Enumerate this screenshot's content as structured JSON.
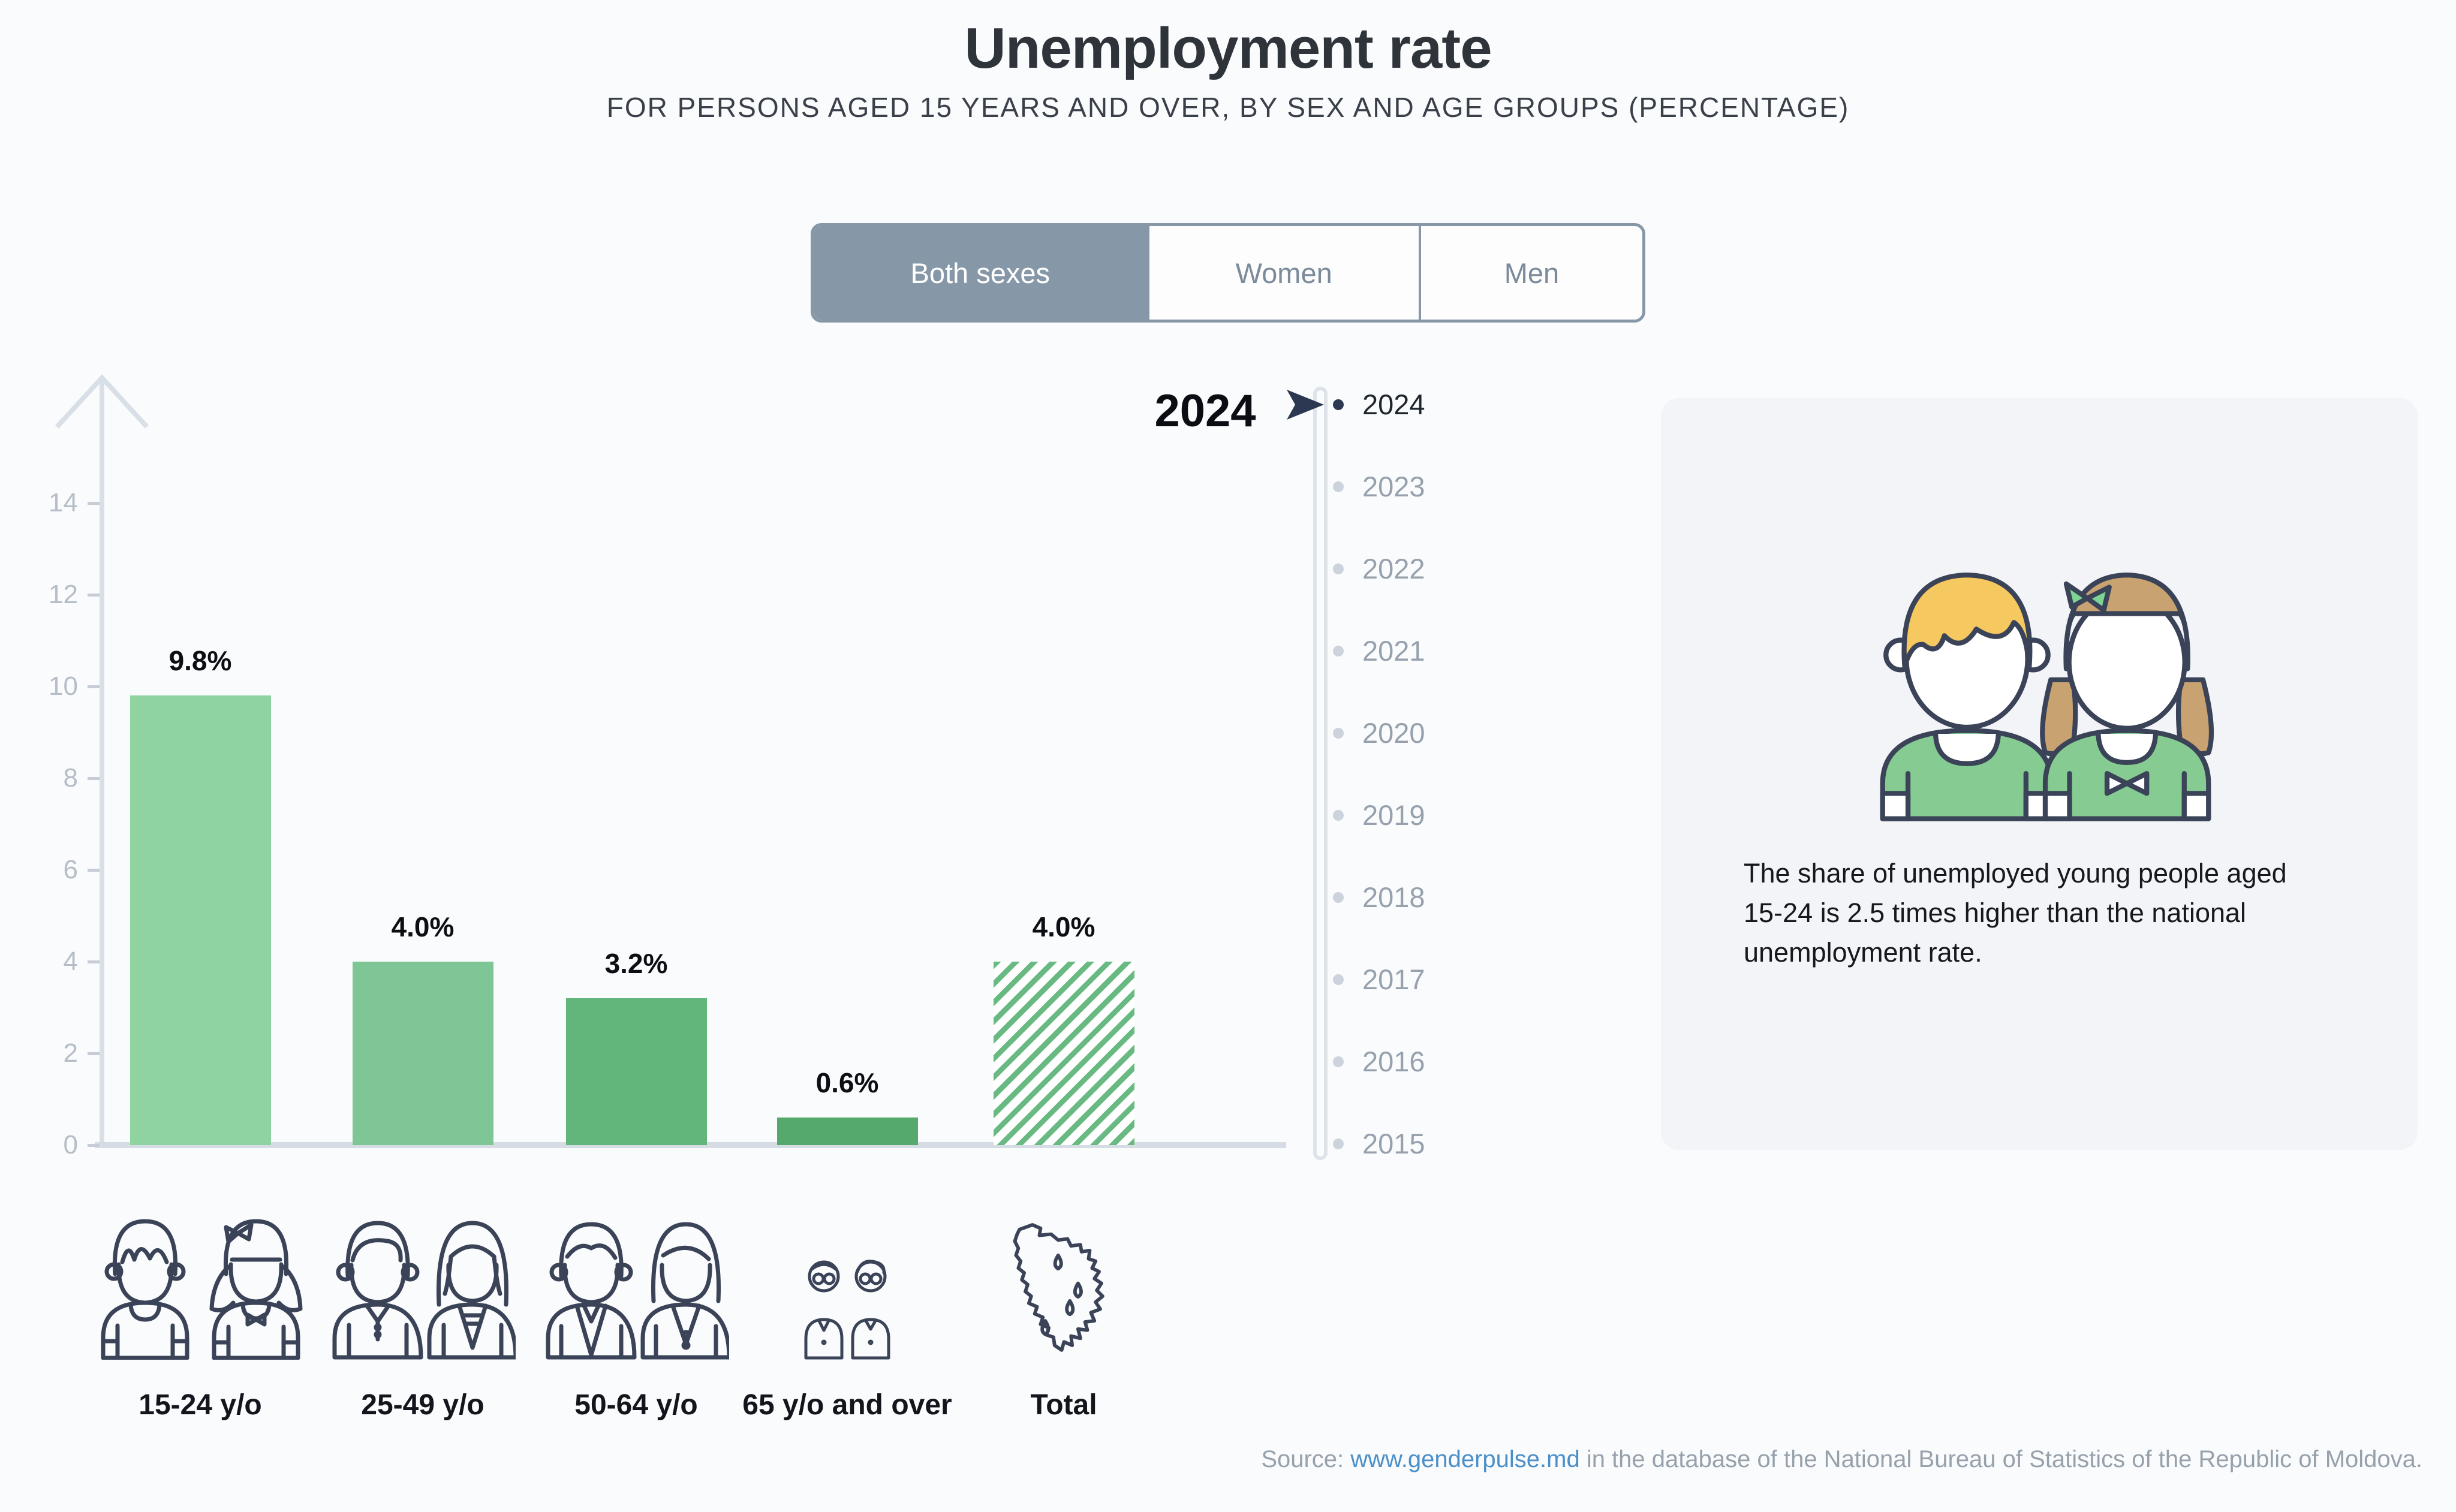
{
  "page": {
    "title": "Unemployment rate",
    "subtitle": "FOR PERSONS AGED 15 YEARS AND OVER, BY SEX AND AGE GROUPS (PERCENTAGE)"
  },
  "tabs": {
    "items": [
      {
        "label": "Both sexes",
        "selected": true
      },
      {
        "label": "Women",
        "selected": false
      },
      {
        "label": "Men",
        "selected": false
      }
    ]
  },
  "year_label": "2024",
  "chart_data": {
    "type": "bar",
    "title": "2024",
    "categories": [
      "15-24 y/o",
      "25-49 y/o",
      "50-64 y/o",
      "65 y/o and over",
      "Total"
    ],
    "values": [
      9.8,
      4.0,
      3.2,
      0.6,
      4.0
    ],
    "value_labels": [
      "9.8%",
      "4.0%",
      "3.2%",
      "0.6%",
      "4.0%"
    ],
    "xlabel": "",
    "ylabel": "",
    "ylim": [
      0,
      14
    ],
    "yticks": [
      14,
      12,
      10,
      8,
      6,
      4,
      2,
      0
    ],
    "grid": false,
    "legend_position": "none",
    "bar_colors": [
      "#8fd4a0",
      "#7fc697",
      "#62b67c",
      "#55a96c",
      "hatch"
    ],
    "hatch_color": "#69ba82",
    "category_icons": [
      "young-pair-icon",
      "adult-pair-icon",
      "senior-pair-icon",
      "elderly-pair-icon",
      "moldova-map-icon"
    ]
  },
  "timeline": {
    "selected": "2024",
    "years": [
      "2024",
      "2023",
      "2022",
      "2021",
      "2020",
      "2019",
      "2018",
      "2017",
      "2016",
      "2015"
    ]
  },
  "info_card": {
    "text": "The share of unemployed young people aged 15-24 is 2.5 times higher than the national unemployment rate."
  },
  "source": {
    "prefix": "Source: ",
    "link": "www.genderpulse.md",
    "suffix": " in the database of the National Bureau of Statistics of the Republic of Moldova."
  },
  "colors": {
    "background": "#fafbfc",
    "card_background": "#f2f4f7",
    "tab_accent": "#8697a7",
    "axis": "#d9dfe6",
    "tick_text": "#b5bdc7",
    "active_navy": "#2c3852",
    "link_blue": "#4b8fc8",
    "shirt_green": "#85cb92",
    "hair_yellow": "#f6c860",
    "hair_brown": "#c9a272"
  }
}
